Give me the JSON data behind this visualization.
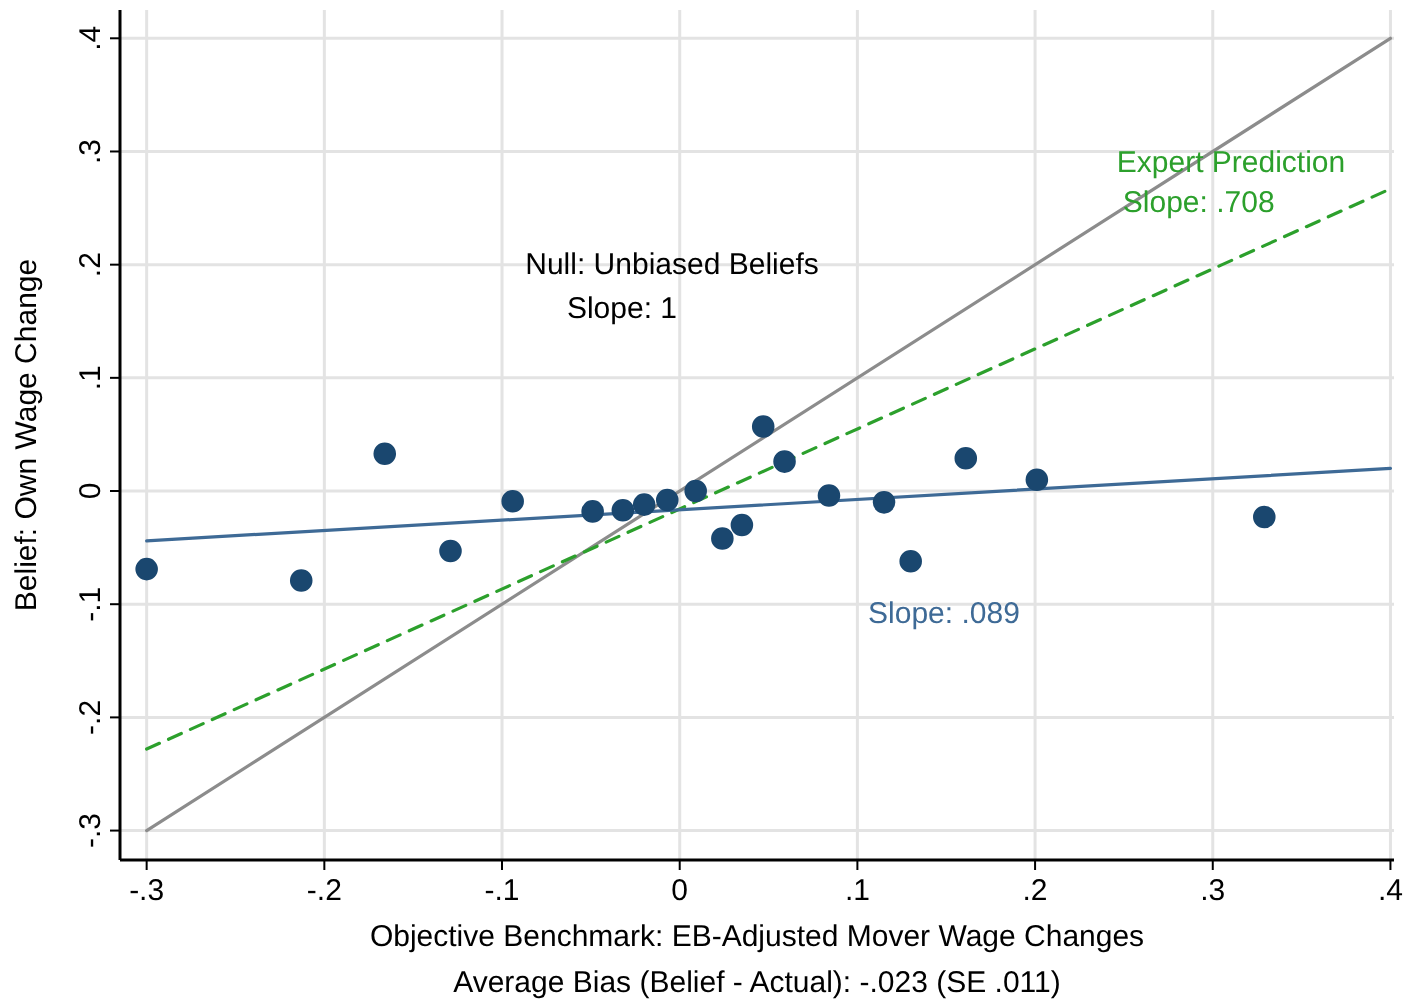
{
  "chart_data": {
    "type": "scatter",
    "xlabel": "Objective Benchmark: EB-Adjusted Mover Wage Changes",
    "ylabel": "Belief: Own Wage Change",
    "xlim": [
      -0.315,
      0.402
    ],
    "ylim": [
      -0.326,
      0.425
    ],
    "xticks": [
      {
        "value": -0.3,
        "label": "-.3"
      },
      {
        "value": -0.2,
        "label": "-.2"
      },
      {
        "value": -0.1,
        "label": "-.1"
      },
      0,
      {
        "value": 0.1,
        "label": ".1"
      },
      {
        "value": 0.2,
        "label": ".2"
      },
      {
        "value": 0.3,
        "label": ".3"
      },
      {
        "value": 0.4,
        "label": ".4"
      }
    ],
    "yticks": [
      {
        "value": -0.3,
        "label": "-.3"
      },
      {
        "value": -0.2,
        "label": "-.2"
      },
      {
        "value": -0.1,
        "label": "-.1"
      },
      0,
      {
        "value": 0.1,
        "label": ".1"
      },
      {
        "value": 0.2,
        "label": ".2"
      },
      {
        "value": 0.3,
        "label": ".3"
      },
      {
        "value": 0.4,
        "label": ".4"
      }
    ],
    "grid": true,
    "series": [
      {
        "type": "line",
        "color": "#8c8c8c",
        "line_style": "solid",
        "x": [
          -0.3,
          0.4
        ],
        "values": [
          -0.3,
          0.4
        ]
      },
      {
        "type": "line",
        "name": "Expert Prediction\nSlope: .708",
        "color": "#2ca02c",
        "line_style": "dashed",
        "x": [
          -0.3,
          0.4
        ],
        "values": [
          -0.228,
          0.267
        ]
      },
      {
        "type": "line",
        "name": "Slope: .089",
        "color": "#3e6a96",
        "line_style": "solid",
        "x": [
          -0.3,
          0.4
        ],
        "values": [
          -0.044,
          0.02
        ]
      },
      {
        "marker": "circle",
        "color": "#1a476f",
        "x": [
          -0.3,
          -0.213,
          -0.166,
          -0.129,
          -0.094,
          -0.049,
          -0.032,
          -0.02,
          -0.007,
          0.009,
          0.024,
          0.035,
          0.047,
          0.059,
          0.084,
          0.115,
          0.13,
          0.161,
          0.201,
          0.329
        ],
        "values": [
          -0.069,
          -0.079,
          0.033,
          -0.053,
          -0.009,
          -0.018,
          -0.017,
          -0.012,
          -0.008,
          0,
          -0.042,
          -0.03,
          0.057,
          0.026,
          -0.004,
          -0.01,
          -0.062,
          0.029,
          0.01,
          -0.023
        ]
      }
    ],
    "annotations": [
      "Null: Unbiased Beliefs\nSlope: 1",
      "Average Bias (Belief - Actual): -.023 (SE .011)"
    ]
  }
}
